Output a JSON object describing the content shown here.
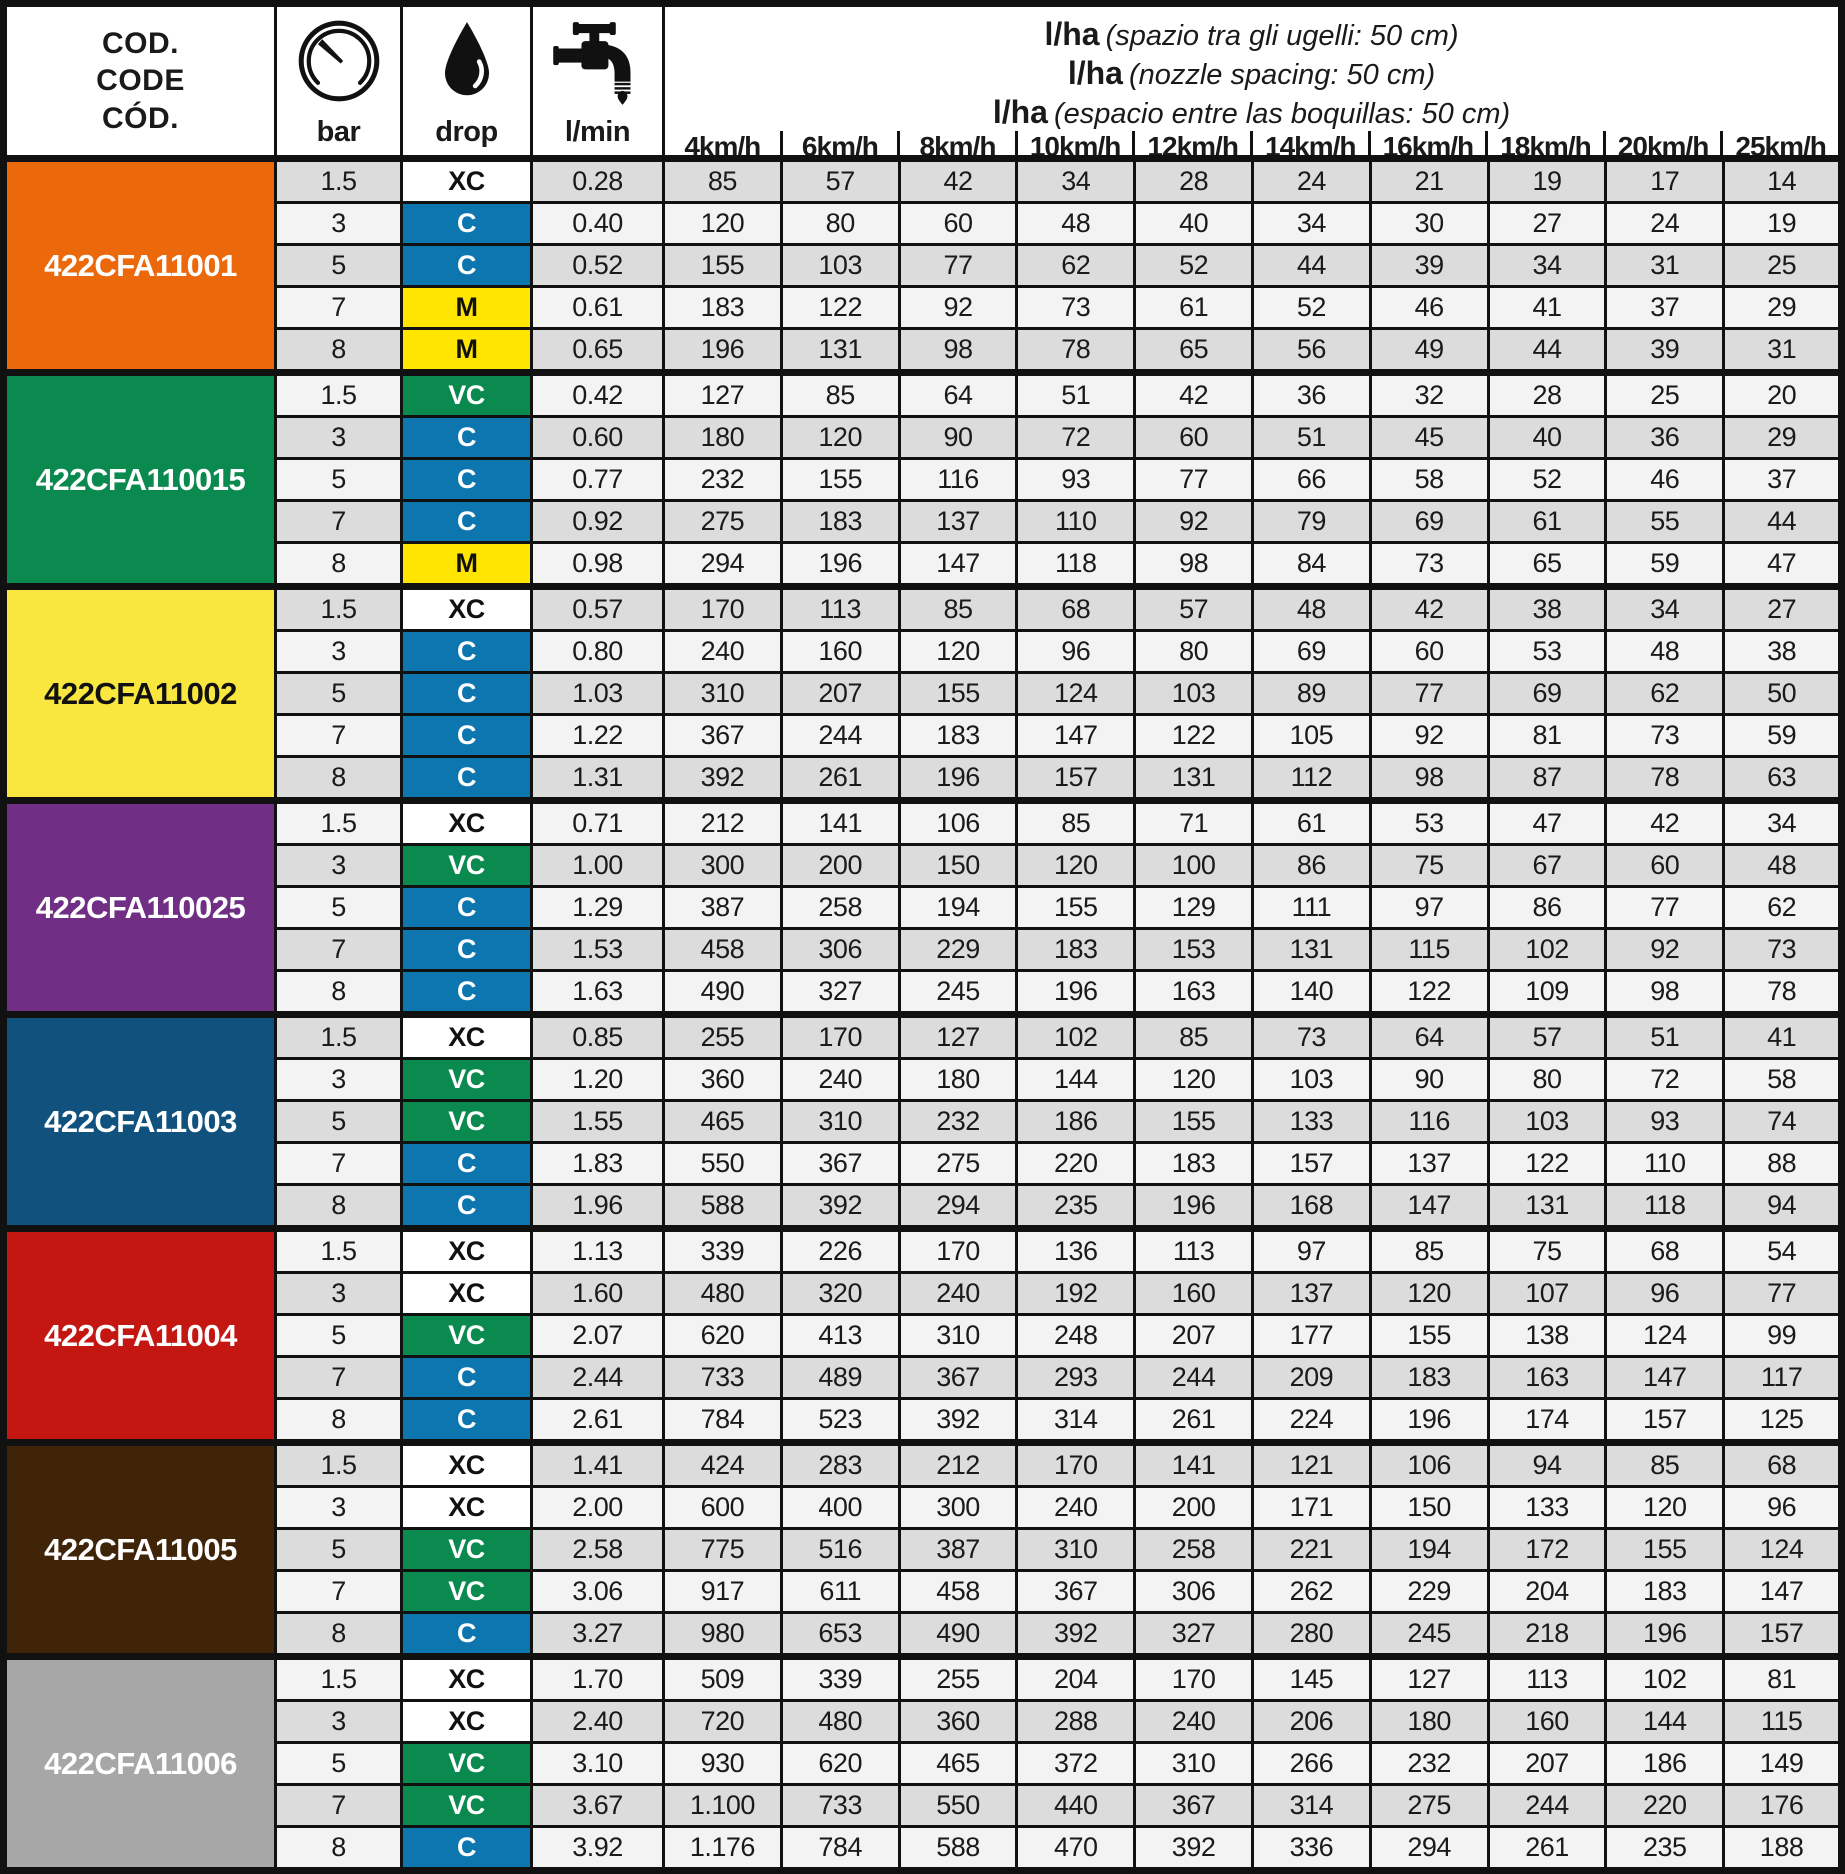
{
  "header": {
    "code_lines": [
      "COD.",
      "CODE",
      "CÓD."
    ],
    "bar_label": "bar",
    "drop_label": "drop",
    "lmin_label": "l/min",
    "icons": {
      "bar": "pressure-gauge-icon",
      "drop": "water-drop-icon",
      "lmin": "faucet-icon"
    },
    "lha_lines": [
      {
        "bold": "l/ha",
        "italic": "(spazio tra gli ugelli: 50 cm)"
      },
      {
        "bold": "l/ha",
        "italic": "(nozzle spacing: 50 cm)"
      },
      {
        "bold": "l/ha",
        "italic": "(espacio entre las boquillas: 50 cm)"
      }
    ],
    "speeds": [
      "4km/h",
      "6km/h",
      "8km/h",
      "10km/h",
      "12km/h",
      "14km/h",
      "16km/h",
      "18km/h",
      "20km/h",
      "25km/h"
    ]
  },
  "drop_styles": {
    "XC": {
      "bg": "#ffffff",
      "fg": "#111111"
    },
    "C": {
      "bg": "#0e76ae",
      "fg": "#ffffff"
    },
    "M": {
      "bg": "#ffe500",
      "fg": "#111111"
    },
    "VC": {
      "bg": "#0b8a4f",
      "fg": "#ffffff"
    }
  },
  "colors": {
    "row_dark": "#dcdcdc",
    "row_light": "#f3f3f3",
    "border": "#111111"
  },
  "groups": [
    {
      "code": "422CFA11001",
      "color": "#eb690b",
      "text_color": "#ffffff",
      "rows": [
        {
          "bar": "1.5",
          "drop": "XC",
          "lmin": "0.28",
          "lha": [
            "85",
            "57",
            "42",
            "34",
            "28",
            "24",
            "21",
            "19",
            "17",
            "14"
          ]
        },
        {
          "bar": "3",
          "drop": "C",
          "lmin": "0.40",
          "lha": [
            "120",
            "80",
            "60",
            "48",
            "40",
            "34",
            "30",
            "27",
            "24",
            "19"
          ]
        },
        {
          "bar": "5",
          "drop": "C",
          "lmin": "0.52",
          "lha": [
            "155",
            "103",
            "77",
            "62",
            "52",
            "44",
            "39",
            "34",
            "31",
            "25"
          ]
        },
        {
          "bar": "7",
          "drop": "M",
          "lmin": "0.61",
          "lha": [
            "183",
            "122",
            "92",
            "73",
            "61",
            "52",
            "46",
            "41",
            "37",
            "29"
          ]
        },
        {
          "bar": "8",
          "drop": "M",
          "lmin": "0.65",
          "lha": [
            "196",
            "131",
            "98",
            "78",
            "65",
            "56",
            "49",
            "44",
            "39",
            "31"
          ]
        }
      ]
    },
    {
      "code": "422CFA110015",
      "color": "#0b8a4f",
      "text_color": "#ffffff",
      "rows": [
        {
          "bar": "1.5",
          "drop": "VC",
          "lmin": "0.42",
          "lha": [
            "127",
            "85",
            "64",
            "51",
            "42",
            "36",
            "32",
            "28",
            "25",
            "20"
          ]
        },
        {
          "bar": "3",
          "drop": "C",
          "lmin": "0.60",
          "lha": [
            "180",
            "120",
            "90",
            "72",
            "60",
            "51",
            "45",
            "40",
            "36",
            "29"
          ]
        },
        {
          "bar": "5",
          "drop": "C",
          "lmin": "0.77",
          "lha": [
            "232",
            "155",
            "116",
            "93",
            "77",
            "66",
            "58",
            "52",
            "46",
            "37"
          ]
        },
        {
          "bar": "7",
          "drop": "C",
          "lmin": "0.92",
          "lha": [
            "275",
            "183",
            "137",
            "110",
            "92",
            "79",
            "69",
            "61",
            "55",
            "44"
          ]
        },
        {
          "bar": "8",
          "drop": "M",
          "lmin": "0.98",
          "lha": [
            "294",
            "196",
            "147",
            "118",
            "98",
            "84",
            "73",
            "65",
            "59",
            "47"
          ]
        }
      ]
    },
    {
      "code": "422CFA11002",
      "color": "#f9e73f",
      "text_color": "#111111",
      "rows": [
        {
          "bar": "1.5",
          "drop": "XC",
          "lmin": "0.57",
          "lha": [
            "170",
            "113",
            "85",
            "68",
            "57",
            "48",
            "42",
            "38",
            "34",
            "27"
          ]
        },
        {
          "bar": "3",
          "drop": "C",
          "lmin": "0.80",
          "lha": [
            "240",
            "160",
            "120",
            "96",
            "80",
            "69",
            "60",
            "53",
            "48",
            "38"
          ]
        },
        {
          "bar": "5",
          "drop": "C",
          "lmin": "1.03",
          "lha": [
            "310",
            "207",
            "155",
            "124",
            "103",
            "89",
            "77",
            "69",
            "62",
            "50"
          ]
        },
        {
          "bar": "7",
          "drop": "C",
          "lmin": "1.22",
          "lha": [
            "367",
            "244",
            "183",
            "147",
            "122",
            "105",
            "92",
            "81",
            "73",
            "59"
          ]
        },
        {
          "bar": "8",
          "drop": "C",
          "lmin": "1.31",
          "lha": [
            "392",
            "261",
            "196",
            "157",
            "131",
            "112",
            "98",
            "87",
            "78",
            "63"
          ]
        }
      ]
    },
    {
      "code": "422CFA110025",
      "color": "#702f85",
      "text_color": "#ffffff",
      "rows": [
        {
          "bar": "1.5",
          "drop": "XC",
          "lmin": "0.71",
          "lha": [
            "212",
            "141",
            "106",
            "85",
            "71",
            "61",
            "53",
            "47",
            "42",
            "34"
          ]
        },
        {
          "bar": "3",
          "drop": "VC",
          "lmin": "1.00",
          "lha": [
            "300",
            "200",
            "150",
            "120",
            "100",
            "86",
            "75",
            "67",
            "60",
            "48"
          ]
        },
        {
          "bar": "5",
          "drop": "C",
          "lmin": "1.29",
          "lha": [
            "387",
            "258",
            "194",
            "155",
            "129",
            "111",
            "97",
            "86",
            "77",
            "62"
          ]
        },
        {
          "bar": "7",
          "drop": "C",
          "lmin": "1.53",
          "lha": [
            "458",
            "306",
            "229",
            "183",
            "153",
            "131",
            "115",
            "102",
            "92",
            "73"
          ]
        },
        {
          "bar": "8",
          "drop": "C",
          "lmin": "1.63",
          "lha": [
            "490",
            "327",
            "245",
            "196",
            "163",
            "140",
            "122",
            "109",
            "98",
            "78"
          ]
        }
      ]
    },
    {
      "code": "422CFA11003",
      "color": "#10527d",
      "text_color": "#ffffff",
      "rows": [
        {
          "bar": "1.5",
          "drop": "XC",
          "lmin": "0.85",
          "lha": [
            "255",
            "170",
            "127",
            "102",
            "85",
            "73",
            "64",
            "57",
            "51",
            "41"
          ]
        },
        {
          "bar": "3",
          "drop": "VC",
          "lmin": "1.20",
          "lha": [
            "360",
            "240",
            "180",
            "144",
            "120",
            "103",
            "90",
            "80",
            "72",
            "58"
          ]
        },
        {
          "bar": "5",
          "drop": "VC",
          "lmin": "1.55",
          "lha": [
            "465",
            "310",
            "232",
            "186",
            "155",
            "133",
            "116",
            "103",
            "93",
            "74"
          ]
        },
        {
          "bar": "7",
          "drop": "C",
          "lmin": "1.83",
          "lha": [
            "550",
            "367",
            "275",
            "220",
            "183",
            "157",
            "137",
            "122",
            "110",
            "88"
          ]
        },
        {
          "bar": "8",
          "drop": "C",
          "lmin": "1.96",
          "lha": [
            "588",
            "392",
            "294",
            "235",
            "196",
            "168",
            "147",
            "131",
            "118",
            "94"
          ]
        }
      ]
    },
    {
      "code": "422CFA11004",
      "color": "#c41712",
      "text_color": "#ffffff",
      "rows": [
        {
          "bar": "1.5",
          "drop": "XC",
          "lmin": "1.13",
          "lha": [
            "339",
            "226",
            "170",
            "136",
            "113",
            "97",
            "85",
            "75",
            "68",
            "54"
          ]
        },
        {
          "bar": "3",
          "drop": "XC",
          "lmin": "1.60",
          "lha": [
            "480",
            "320",
            "240",
            "192",
            "160",
            "137",
            "120",
            "107",
            "96",
            "77"
          ]
        },
        {
          "bar": "5",
          "drop": "VC",
          "lmin": "2.07",
          "lha": [
            "620",
            "413",
            "310",
            "248",
            "207",
            "177",
            "155",
            "138",
            "124",
            "99"
          ]
        },
        {
          "bar": "7",
          "drop": "C",
          "lmin": "2.44",
          "lha": [
            "733",
            "489",
            "367",
            "293",
            "244",
            "209",
            "183",
            "163",
            "147",
            "117"
          ]
        },
        {
          "bar": "8",
          "drop": "C",
          "lmin": "2.61",
          "lha": [
            "784",
            "523",
            "392",
            "314",
            "261",
            "224",
            "196",
            "174",
            "157",
            "125"
          ]
        }
      ]
    },
    {
      "code": "422CFA11005",
      "color": "#3f2408",
      "text_color": "#ffffff",
      "rows": [
        {
          "bar": "1.5",
          "drop": "XC",
          "lmin": "1.41",
          "lha": [
            "424",
            "283",
            "212",
            "170",
            "141",
            "121",
            "106",
            "94",
            "85",
            "68"
          ]
        },
        {
          "bar": "3",
          "drop": "XC",
          "lmin": "2.00",
          "lha": [
            "600",
            "400",
            "300",
            "240",
            "200",
            "171",
            "150",
            "133",
            "120",
            "96"
          ]
        },
        {
          "bar": "5",
          "drop": "VC",
          "lmin": "2.58",
          "lha": [
            "775",
            "516",
            "387",
            "310",
            "258",
            "221",
            "194",
            "172",
            "155",
            "124"
          ]
        },
        {
          "bar": "7",
          "drop": "VC",
          "lmin": "3.06",
          "lha": [
            "917",
            "611",
            "458",
            "367",
            "306",
            "262",
            "229",
            "204",
            "183",
            "147"
          ]
        },
        {
          "bar": "8",
          "drop": "C",
          "lmin": "3.27",
          "lha": [
            "980",
            "653",
            "490",
            "392",
            "327",
            "280",
            "245",
            "218",
            "196",
            "157"
          ]
        }
      ]
    },
    {
      "code": "422CFA11006",
      "color": "#a7a7a7",
      "text_color": "#ffffff",
      "rows": [
        {
          "bar": "1.5",
          "drop": "XC",
          "lmin": "1.70",
          "lha": [
            "509",
            "339",
            "255",
            "204",
            "170",
            "145",
            "127",
            "113",
            "102",
            "81"
          ]
        },
        {
          "bar": "3",
          "drop": "XC",
          "lmin": "2.40",
          "lha": [
            "720",
            "480",
            "360",
            "288",
            "240",
            "206",
            "180",
            "160",
            "144",
            "115"
          ]
        },
        {
          "bar": "5",
          "drop": "VC",
          "lmin": "3.10",
          "lha": [
            "930",
            "620",
            "465",
            "372",
            "310",
            "266",
            "232",
            "207",
            "186",
            "149"
          ]
        },
        {
          "bar": "7",
          "drop": "VC",
          "lmin": "3.67",
          "lha": [
            "1.100",
            "733",
            "550",
            "440",
            "367",
            "314",
            "275",
            "244",
            "220",
            "176"
          ]
        },
        {
          "bar": "8",
          "drop": "C",
          "lmin": "3.92",
          "lha": [
            "1.176",
            "784",
            "588",
            "470",
            "392",
            "336",
            "294",
            "261",
            "235",
            "188"
          ]
        }
      ]
    }
  ]
}
